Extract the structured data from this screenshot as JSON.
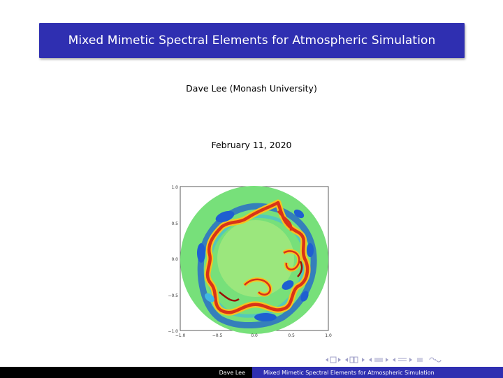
{
  "slide": {
    "title": "Mixed Mimetic Spectral Elements for Atmospheric Simulation",
    "author": "Dave Lee (Monash University)",
    "date": "February 11, 2020"
  },
  "figure": {
    "x_ticks": [
      "−1.0",
      "−0.5",
      "0.0",
      "0.5",
      "1.0"
    ],
    "y_ticks": [
      "1.0",
      "0.5",
      "0.0",
      "−0.5",
      "−1.0"
    ],
    "colors": {
      "background_field": "#77e07a",
      "low": "#1f5fd1",
      "mid_low": "#3fb8e3",
      "high": "#d93218",
      "mid_high": "#f6c320",
      "peak": "#9a1006"
    }
  },
  "footer": {
    "author": "Dave Lee",
    "title": "Mixed Mimetic Spectral Elements for Atmospheric Simulation"
  },
  "nav_icons": [
    "frame-prev-icon",
    "frame-next-icon",
    "subsection-prev-icon",
    "subsection-next-icon",
    "section-prev-icon",
    "section-next-icon",
    "slide-prev-icon",
    "slide-next-icon",
    "align-icon",
    "search-icon"
  ]
}
